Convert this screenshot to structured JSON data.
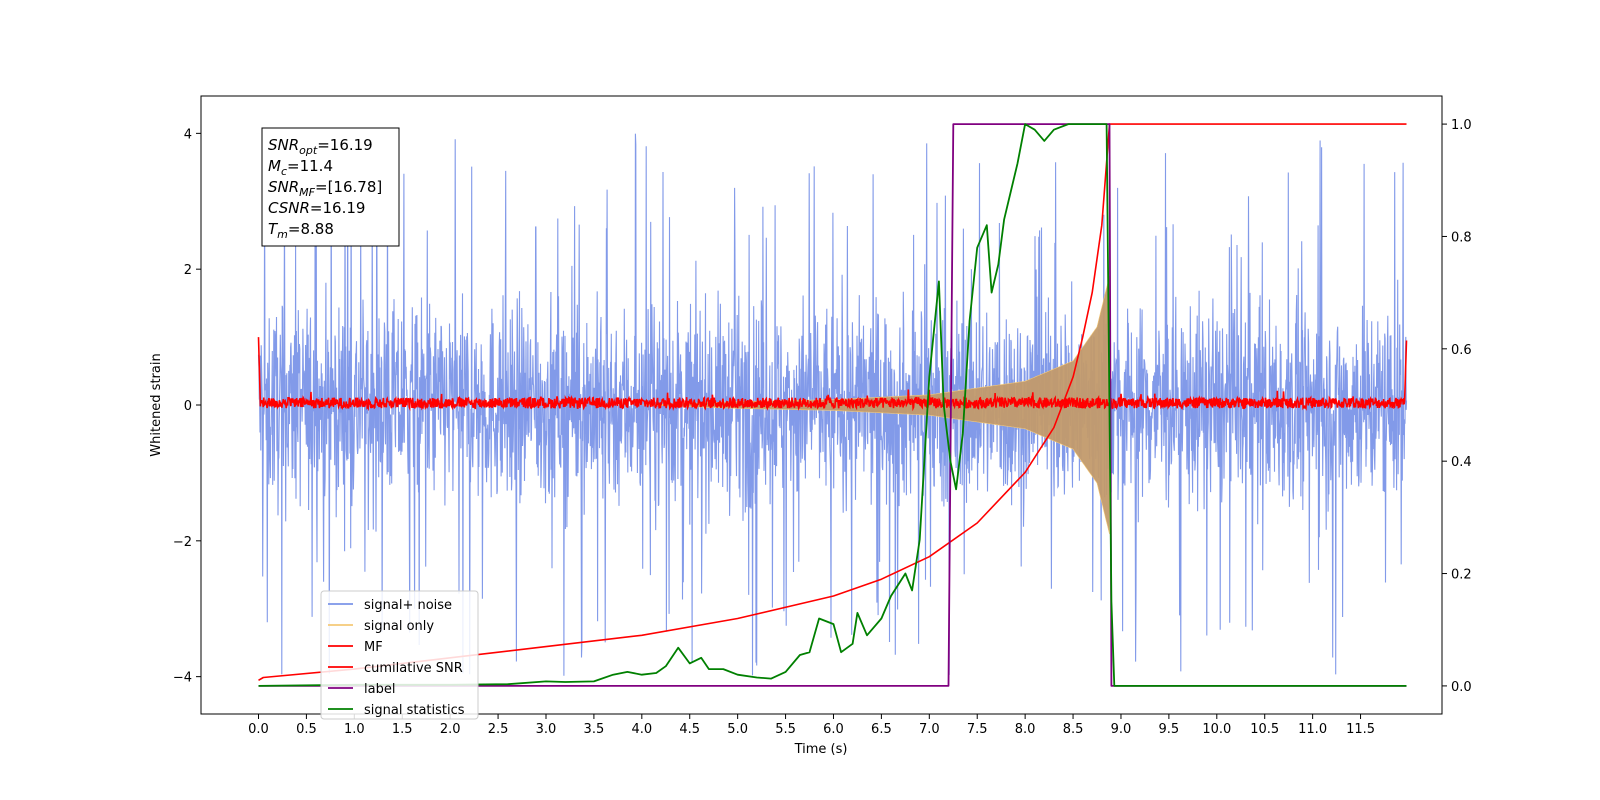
{
  "chart_data": {
    "type": "line",
    "xlabel": "Time (s)",
    "ylabel": "Whitened strain",
    "xlim": [
      -0.6,
      12.35
    ],
    "ylim": [
      -4.55,
      4.55
    ],
    "y2lim": [
      -0.05,
      1.05
    ],
    "grid": false,
    "legend_position": "lower-left",
    "x_ticks": [
      "0.0",
      "0.5",
      "1.0",
      "1.5",
      "2.0",
      "2.5",
      "3.0",
      "3.5",
      "4.0",
      "4.5",
      "5.0",
      "5.5",
      "6.0",
      "6.5",
      "7.0",
      "7.5",
      "8.0",
      "8.5",
      "9.0",
      "9.5",
      "10.0",
      "10.5",
      "11.0",
      "11.5"
    ],
    "y_ticks": [
      "4",
      "2",
      "0",
      "−2",
      "−4"
    ],
    "y2_ticks": [
      "1.0",
      "0.8",
      "0.6",
      "0.4",
      "0.2",
      "0.0"
    ],
    "stats_box": [
      {
        "base": "SNR",
        "sub": "opt",
        "rest": "=16.19"
      },
      {
        "base": "M",
        "sub": "c",
        "rest": "=11.4"
      },
      {
        "base": "SNR",
        "sub": "MF",
        "rest": "=[16.78]"
      },
      {
        "base": "CSNR",
        "sub": "",
        "rest": "=16.19"
      },
      {
        "base": "T",
        "sub": "m",
        "rest": "=8.88"
      }
    ],
    "series": [
      {
        "name": "signal+ noise",
        "color": "#7b95e8",
        "axis": "left",
        "description_values": {
          "t_start": 0.0,
          "t_end": 11.98,
          "y_min": -4.0,
          "y_max": 4.15
        }
      },
      {
        "name": "signal only",
        "color": "#f5c977",
        "axis": "left",
        "envelope": [
          [
            5.0,
            0.05
          ],
          [
            6.0,
            0.08
          ],
          [
            7.0,
            0.15
          ],
          [
            8.0,
            0.35
          ],
          [
            8.5,
            0.65
          ],
          [
            8.75,
            1.15
          ],
          [
            8.88,
            1.9
          ]
        ],
        "t_merger": 8.88
      },
      {
        "name": "MF",
        "color": "#ff0000",
        "axis": "left",
        "values": [
          [
            0.0,
            1.0
          ],
          [
            0.02,
            0.05
          ],
          [
            11.96,
            0.05
          ],
          [
            11.98,
            0.95
          ]
        ]
      },
      {
        "name": "cumilative SNR",
        "color": "#ff0000",
        "axis": "right",
        "points": [
          [
            0.0,
            0.01
          ],
          [
            0.05,
            0.015
          ],
          [
            1.0,
            0.03
          ],
          [
            2.0,
            0.05
          ],
          [
            3.0,
            0.07
          ],
          [
            4.0,
            0.09
          ],
          [
            5.0,
            0.12
          ],
          [
            6.0,
            0.16
          ],
          [
            6.5,
            0.19
          ],
          [
            7.0,
            0.23
          ],
          [
            7.5,
            0.29
          ],
          [
            8.0,
            0.38
          ],
          [
            8.3,
            0.46
          ],
          [
            8.5,
            0.55
          ],
          [
            8.6,
            0.62
          ],
          [
            8.7,
            0.7
          ],
          [
            8.8,
            0.82
          ],
          [
            8.88,
            1.0
          ],
          [
            11.98,
            1.0
          ]
        ]
      },
      {
        "name": "label",
        "color": "#800080",
        "axis": "right",
        "points": [
          [
            0.0,
            0.0
          ],
          [
            7.2,
            0.0
          ],
          [
            7.25,
            1.0
          ],
          [
            8.88,
            1.0
          ],
          [
            8.9,
            0.0
          ],
          [
            11.98,
            0.0
          ]
        ]
      },
      {
        "name": "signal statistics",
        "color": "#008000",
        "axis": "right",
        "points": [
          [
            0.0,
            0.0
          ],
          [
            1.0,
            0.002
          ],
          [
            2.0,
            0.002
          ],
          [
            2.6,
            0.003
          ],
          [
            3.0,
            0.008
          ],
          [
            3.2,
            0.007
          ],
          [
            3.5,
            0.008
          ],
          [
            3.7,
            0.02
          ],
          [
            3.85,
            0.025
          ],
          [
            4.0,
            0.02
          ],
          [
            4.15,
            0.023
          ],
          [
            4.25,
            0.035
          ],
          [
            4.38,
            0.068
          ],
          [
            4.5,
            0.04
          ],
          [
            4.62,
            0.05
          ],
          [
            4.7,
            0.03
          ],
          [
            4.85,
            0.03
          ],
          [
            5.0,
            0.02
          ],
          [
            5.2,
            0.015
          ],
          [
            5.35,
            0.013
          ],
          [
            5.5,
            0.025
          ],
          [
            5.65,
            0.055
          ],
          [
            5.75,
            0.06
          ],
          [
            5.85,
            0.12
          ],
          [
            6.0,
            0.11
          ],
          [
            6.08,
            0.06
          ],
          [
            6.2,
            0.075
          ],
          [
            6.25,
            0.13
          ],
          [
            6.35,
            0.09
          ],
          [
            6.5,
            0.12
          ],
          [
            6.6,
            0.16
          ],
          [
            6.75,
            0.2
          ],
          [
            6.82,
            0.17
          ],
          [
            6.9,
            0.26
          ],
          [
            7.0,
            0.55
          ],
          [
            7.1,
            0.72
          ],
          [
            7.15,
            0.5
          ],
          [
            7.22,
            0.4
          ],
          [
            7.28,
            0.35
          ],
          [
            7.35,
            0.45
          ],
          [
            7.42,
            0.65
          ],
          [
            7.5,
            0.78
          ],
          [
            7.6,
            0.82
          ],
          [
            7.65,
            0.7
          ],
          [
            7.72,
            0.75
          ],
          [
            7.78,
            0.83
          ],
          [
            7.85,
            0.88
          ],
          [
            7.92,
            0.93
          ],
          [
            8.0,
            1.0
          ],
          [
            8.1,
            0.99
          ],
          [
            8.2,
            0.97
          ],
          [
            8.3,
            0.99
          ],
          [
            8.45,
            1.0
          ],
          [
            8.85,
            1.0
          ],
          [
            8.9,
            0.15
          ],
          [
            8.93,
            0.0
          ],
          [
            11.98,
            0.0
          ]
        ]
      }
    ]
  }
}
